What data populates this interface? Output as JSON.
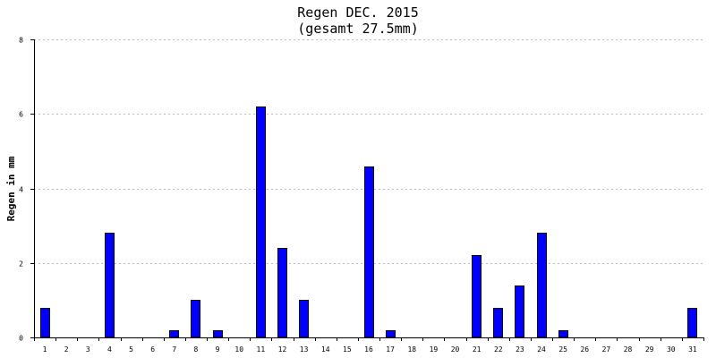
{
  "chart_data": {
    "type": "bar",
    "title": "Regen DEC. 2015",
    "subtitle": "(gesamt 27.5mm)",
    "xlabel": "",
    "ylabel": "Regen in mm",
    "ylim": [
      0,
      8
    ],
    "yticks": [
      "0",
      "2",
      "4",
      "6",
      "8"
    ],
    "grid": true,
    "categories": [
      "1",
      "2",
      "3",
      "4",
      "5",
      "6",
      "7",
      "8",
      "9",
      "10",
      "11",
      "12",
      "13",
      "14",
      "15",
      "16",
      "17",
      "18",
      "19",
      "20",
      "21",
      "22",
      "23",
      "24",
      "25",
      "26",
      "27",
      "28",
      "29",
      "30",
      "31"
    ],
    "values": [
      0.8,
      0,
      0,
      2.8,
      0,
      0,
      0.2,
      1.0,
      0.2,
      0,
      6.2,
      2.4,
      1.0,
      0,
      0,
      4.6,
      0.2,
      0,
      0,
      0,
      2.2,
      0.8,
      1.4,
      2.8,
      0.2,
      0,
      0,
      0,
      0,
      0,
      0.8
    ],
    "colors": {
      "bar_fill": "#0000ff",
      "bar_stroke": "#000000",
      "grid": "#bbbbbb",
      "axis": "#000000"
    }
  }
}
